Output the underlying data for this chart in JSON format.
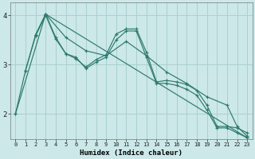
{
  "xlabel": "Humidex (Indice chaleur)",
  "ylabel": "",
  "background_color": "#cce8e8",
  "grid_color": "#aad0d0",
  "line_color": "#2d7a6e",
  "xlim": [
    -0.5,
    23.5
  ],
  "ylim": [
    1.5,
    4.25
  ],
  "yticks": [
    2,
    3,
    4
  ],
  "xticks": [
    0,
    1,
    2,
    3,
    4,
    5,
    6,
    7,
    8,
    9,
    10,
    11,
    12,
    13,
    14,
    15,
    16,
    17,
    18,
    19,
    20,
    21,
    22,
    23
  ],
  "lines": [
    {
      "x": [
        0,
        1,
        2,
        3,
        5,
        7,
        9,
        11,
        13,
        15,
        17,
        19,
        21,
        22,
        23
      ],
      "y": [
        2.0,
        2.88,
        3.6,
        4.02,
        3.55,
        3.28,
        3.18,
        3.47,
        3.18,
        2.85,
        2.62,
        2.35,
        2.18,
        1.75,
        1.55
      ]
    },
    {
      "x": [
        2,
        3,
        4,
        5,
        6,
        7,
        8,
        9,
        10,
        11,
        12,
        13,
        14,
        15,
        16,
        17,
        18,
        19,
        20,
        21,
        22,
        23
      ],
      "y": [
        3.6,
        4.02,
        3.55,
        3.22,
        3.12,
        2.95,
        3.1,
        3.2,
        3.62,
        3.72,
        3.72,
        3.25,
        2.65,
        2.68,
        2.65,
        2.6,
        2.48,
        2.18,
        1.75,
        1.75,
        1.72,
        1.62
      ]
    },
    {
      "x": [
        1,
        2,
        3,
        4,
        5,
        6,
        7,
        8,
        9,
        10,
        11,
        12,
        13,
        14,
        15,
        16,
        17,
        18,
        19,
        20,
        21,
        22,
        23
      ],
      "y": [
        2.88,
        3.58,
        4.0,
        3.52,
        3.22,
        3.15,
        2.92,
        3.05,
        3.15,
        3.5,
        3.68,
        3.68,
        3.15,
        2.62,
        2.62,
        2.58,
        2.5,
        2.38,
        2.08,
        1.72,
        1.72,
        1.62,
        1.52
      ]
    },
    {
      "x": [
        0,
        3,
        23
      ],
      "y": [
        2.0,
        4.02,
        1.52
      ]
    }
  ]
}
